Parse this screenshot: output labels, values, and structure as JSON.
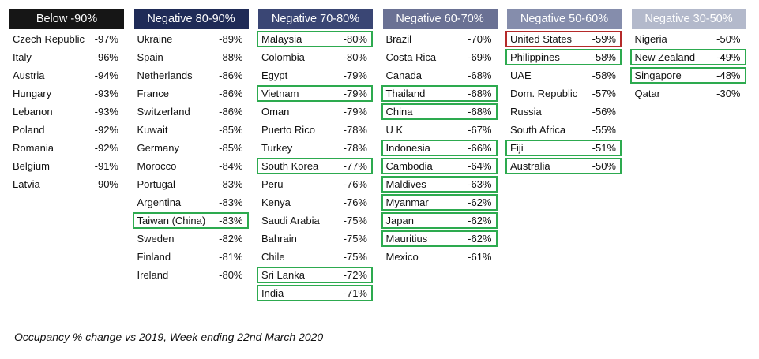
{
  "columns": [
    {
      "header": "Below -90%",
      "color": "#161616",
      "rows": [
        {
          "name": "Czech Republic",
          "value": "-97%"
        },
        {
          "name": "Italy",
          "value": "-96%"
        },
        {
          "name": "Austria",
          "value": "-94%"
        },
        {
          "name": "Hungary",
          "value": "-93%"
        },
        {
          "name": "Lebanon",
          "value": "-93%"
        },
        {
          "name": "Poland",
          "value": "-92%"
        },
        {
          "name": "Romania",
          "value": "-92%"
        },
        {
          "name": "Belgium",
          "value": "-91%"
        },
        {
          "name": "Latvia",
          "value": "-90%"
        }
      ]
    },
    {
      "header": "Negative 80-90%",
      "color": "#1f2b57",
      "rows": [
        {
          "name": "Ukraine",
          "value": "-89%"
        },
        {
          "name": "Spain",
          "value": "-88%"
        },
        {
          "name": "Netherlands",
          "value": "-86%"
        },
        {
          "name": "France",
          "value": "-86%"
        },
        {
          "name": "Switzerland",
          "value": "-86%"
        },
        {
          "name": "Kuwait",
          "value": "-85%"
        },
        {
          "name": "Germany",
          "value": "-85%"
        },
        {
          "name": "Morocco",
          "value": "-84%"
        },
        {
          "name": "Portugal",
          "value": "-83%"
        },
        {
          "name": "Argentina",
          "value": "-83%"
        },
        {
          "name": "Taiwan (China)",
          "value": "-83%",
          "box": "#2daa4f"
        },
        {
          "name": "Sweden",
          "value": "-82%"
        },
        {
          "name": "Finland",
          "value": "-81%"
        },
        {
          "name": "Ireland",
          "value": "-80%"
        }
      ]
    },
    {
      "header": "Negative 70-80%",
      "color": "#3a4674",
      "rows": [
        {
          "name": "Malaysia",
          "value": "-80%",
          "box": "#2daa4f"
        },
        {
          "name": "Colombia",
          "value": "-80%"
        },
        {
          "name": "Egypt",
          "value": "-79%"
        },
        {
          "name": "Vietnam",
          "value": "-79%",
          "box": "#2daa4f"
        },
        {
          "name": "Oman",
          "value": "-79%"
        },
        {
          "name": "Puerto Rico",
          "value": "-78%"
        },
        {
          "name": "Turkey",
          "value": "-78%"
        },
        {
          "name": "South Korea",
          "value": "-77%",
          "box": "#2daa4f"
        },
        {
          "name": "Peru",
          "value": "-76%"
        },
        {
          "name": "Kenya",
          "value": "-76%"
        },
        {
          "name": "Saudi Arabia",
          "value": "-75%"
        },
        {
          "name": "Bahrain",
          "value": "-75%"
        },
        {
          "name": "Chile",
          "value": "-75%"
        },
        {
          "name": "Sri Lanka",
          "value": "-72%",
          "box": "#2daa4f"
        },
        {
          "name": "India",
          "value": "-71%",
          "box": "#2daa4f"
        }
      ]
    },
    {
      "header": "Negative 60-70%",
      "color": "#6a7194",
      "rows": [
        {
          "name": "Brazil",
          "value": "-70%"
        },
        {
          "name": "Costa Rica",
          "value": "-69%"
        },
        {
          "name": "Canada",
          "value": "-68%"
        },
        {
          "name": "Thailand",
          "value": "-68%",
          "box": "#2daa4f"
        },
        {
          "name": "China",
          "value": "-68%",
          "box": "#2daa4f"
        },
        {
          "name": "U K",
          "value": "-67%"
        },
        {
          "name": "Indonesia",
          "value": "-66%",
          "box": "#2daa4f"
        },
        {
          "name": "Cambodia",
          "value": "-64%",
          "box": "#2daa4f"
        },
        {
          "name": "Maldives",
          "value": "-63%",
          "box": "#2daa4f"
        },
        {
          "name": "Myanmar",
          "value": "-62%",
          "box": "#2daa4f"
        },
        {
          "name": "Japan",
          "value": "-62%",
          "box": "#2daa4f"
        },
        {
          "name": "Mauritius",
          "value": "-62%",
          "box": "#2daa4f"
        },
        {
          "name": "Mexico",
          "value": "-61%"
        }
      ]
    },
    {
      "header": "Negative 50-60%",
      "color": "#858dac",
      "rows": [
        {
          "name": "United States",
          "value": "-59%",
          "box": "#b42a2a"
        },
        {
          "name": "Philippines",
          "value": "-58%",
          "box": "#2daa4f"
        },
        {
          "name": "UAE",
          "value": "-58%"
        },
        {
          "name": "Dom. Republic",
          "value": "-57%"
        },
        {
          "name": "Russia",
          "value": "-56%"
        },
        {
          "name": "South Africa",
          "value": "-55%"
        },
        {
          "name": "Fiji",
          "value": "-51%",
          "box": "#2daa4f"
        },
        {
          "name": "Australia",
          "value": "-50%",
          "box": "#2daa4f"
        }
      ]
    },
    {
      "header": "Negative 30-50%",
      "color": "#b3b9cb",
      "rows": [
        {
          "name": "Nigeria",
          "value": "-50%"
        },
        {
          "name": "New Zealand",
          "value": "-49%",
          "box": "#2daa4f"
        },
        {
          "name": "Singapore",
          "value": "-48%",
          "box": "#2daa4f"
        },
        {
          "name": "Qatar",
          "value": "-30%"
        }
      ]
    }
  ],
  "footnote": "Occupancy % change vs 2019, Week ending 22nd March 2020"
}
